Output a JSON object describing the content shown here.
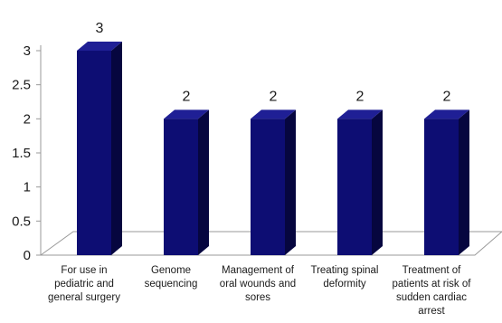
{
  "chart_data": {
    "type": "bar",
    "categories": [
      "For use in pediatric and general surgery",
      "Genome sequencing",
      "Management of oral wounds and sores",
      "Treating spinal deformity",
      "Treatment of patients at risk of sudden cardiac arrest"
    ],
    "values": [
      3,
      2,
      2,
      2,
      2
    ],
    "data_labels": [
      "3",
      "2",
      "2",
      "2",
      "2"
    ],
    "title": "",
    "xlabel": "",
    "ylabel": "",
    "ylim": [
      0,
      3
    ],
    "yticks": [
      "0",
      "0.5",
      "1",
      "1.5",
      "2",
      "2.5",
      "3"
    ],
    "grid": false,
    "legend": "none",
    "style": "3d-column",
    "colors": {
      "bar_front": "#0d0d73",
      "bar_side": "#06063f",
      "bar_top": "#1f1f95",
      "floor": "#ffffff",
      "axis": "#999999",
      "text": "#1a1a1a"
    }
  }
}
